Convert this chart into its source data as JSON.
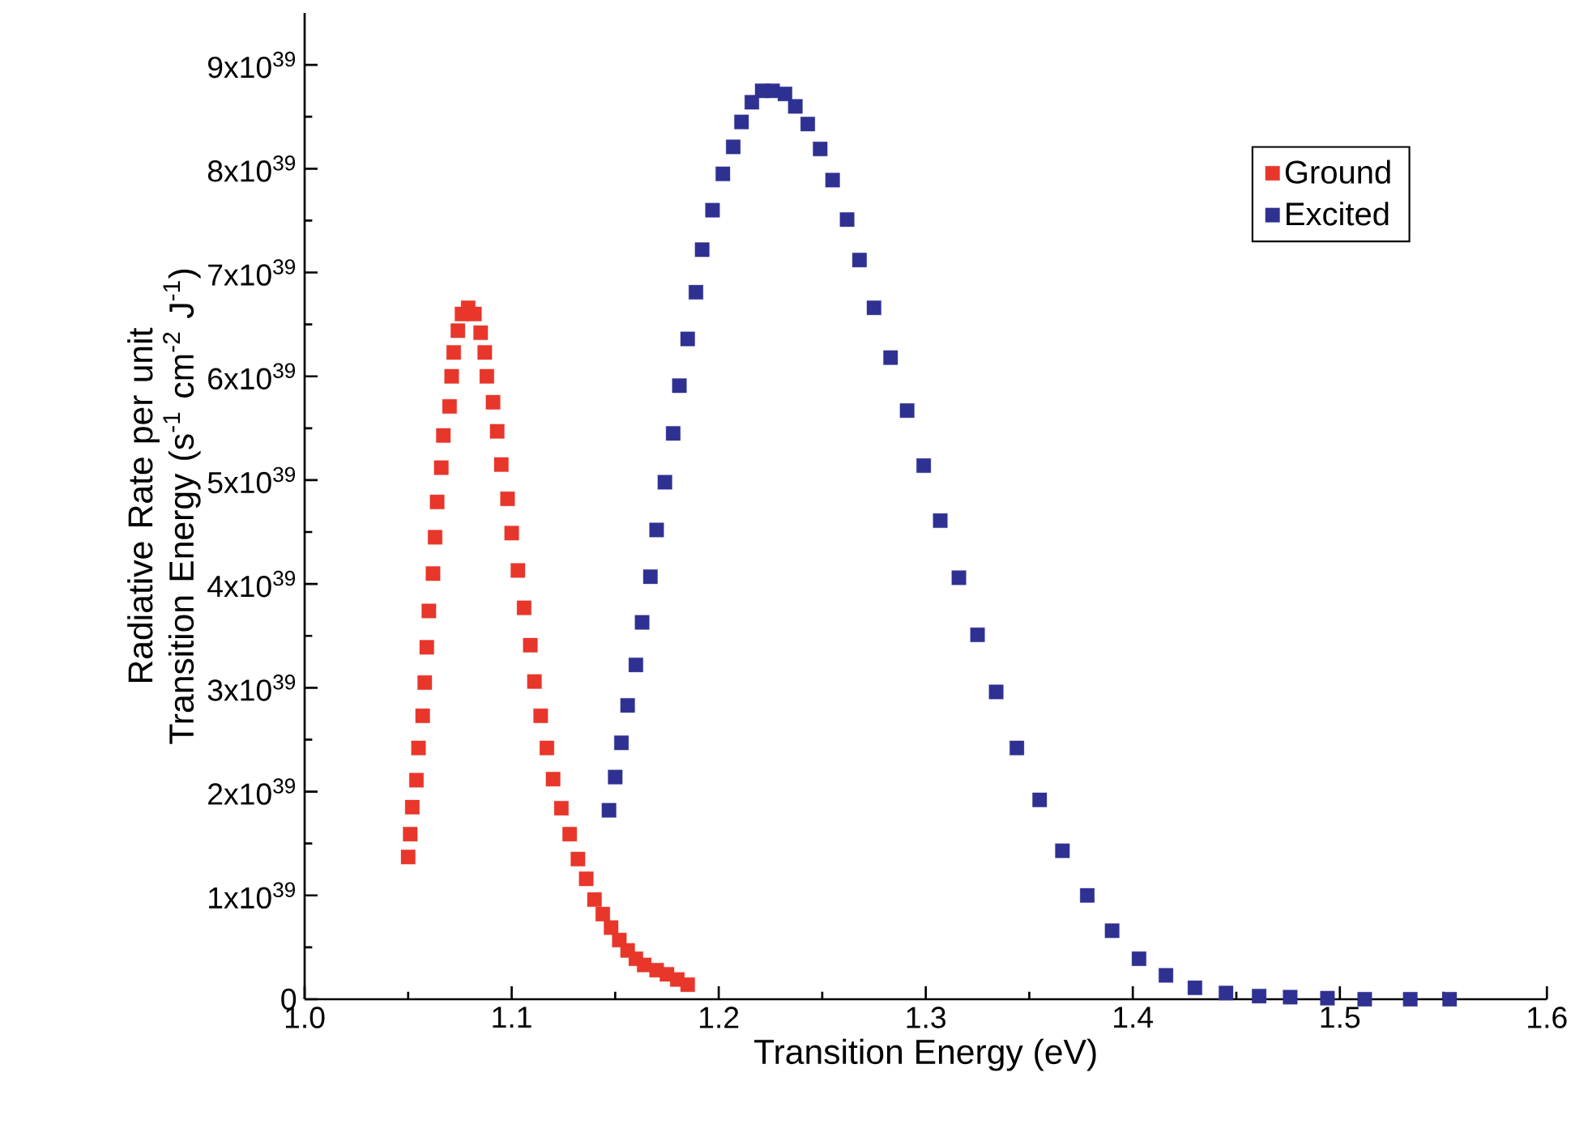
{
  "chart_data": {
    "type": "scatter",
    "xlabel": "Transition Energy (eV)",
    "ylabel": "Radiative Rate per unit Transition Energy (s$^{-1}$ cm$^{-2}$ J$^{-1}$)",
    "xlim": [
      1.0,
      1.6
    ],
    "xticks": [
      {
        "value": 1.0,
        "label": "1.0"
      },
      1.1,
      1.2,
      1.3,
      1.4,
      1.5,
      {
        "value": 1.6,
        "label": "1.6"
      }
    ],
    "ylim": [
      0,
      9.5e+39
    ],
    "yticks": [
      0,
      {
        "value": 1e+39,
        "label": "1x10$^{39}$"
      },
      {
        "value": 2e+39,
        "label": "2x10$^{39}$"
      },
      {
        "value": 3e+39,
        "label": "3x10$^{39}$"
      },
      {
        "value": 4e+39,
        "label": "4x10$^{39}$"
      },
      {
        "value": 5e+39,
        "label": "5x10$^{39}$"
      },
      {
        "value": 6e+39,
        "label": "6x10$^{39}$"
      },
      {
        "value": 7e+39,
        "label": "7x10$^{39}$"
      },
      {
        "value": 8e+39,
        "label": "8x10$^{39}$"
      },
      {
        "value": 9e+39,
        "label": "9x10$^{39}$"
      }
    ],
    "legend": "top right",
    "marker": "square",
    "grid": false,
    "series": [
      {
        "name": "Ground",
        "color": "#e8362a",
        "x": [
          1.05,
          1.051,
          1.052,
          1.054,
          1.055,
          1.057,
          1.058,
          1.059,
          1.06,
          1.062,
          1.063,
          1.064,
          1.066,
          1.067,
          1.07,
          1.071,
          1.072,
          1.074,
          1.076,
          1.079,
          1.082,
          1.085,
          1.087,
          1.088,
          1.091,
          1.093,
          1.095,
          1.098,
          1.1,
          1.103,
          1.106,
          1.109,
          1.111,
          1.114,
          1.117,
          1.12,
          1.124,
          1.128,
          1.132,
          1.136,
          1.14,
          1.144,
          1.148,
          1.152,
          1.156,
          1.16,
          1.164,
          1.17,
          1.175,
          1.18,
          1.185
        ],
        "values": [
          1.37e+39,
          1.59e+39,
          1.85e+39,
          2.11e+39,
          2.42e+39,
          2.73e+39,
          3.05e+39,
          3.39e+39,
          3.74e+39,
          4.1e+39,
          4.45e+39,
          4.79e+39,
          5.12e+39,
          5.43e+39,
          5.71e+39,
          6e+39,
          6.23e+39,
          6.44e+39,
          6.6e+39,
          6.66e+39,
          6.6e+39,
          6.42e+39,
          6.23e+39,
          6e+39,
          5.75e+39,
          5.47e+39,
          5.15e+39,
          4.82e+39,
          4.49e+39,
          4.13e+39,
          3.77e+39,
          3.41e+39,
          3.06e+39,
          2.73e+39,
          2.42e+39,
          2.12e+39,
          1.84e+39,
          1.59e+39,
          1.35e+39,
          1.16e+39,
          9.6e+38,
          8.2e+38,
          6.9e+38,
          5.7e+38,
          4.7e+38,
          3.9e+38,
          3.3e+38,
          2.8e+38,
          2.4e+38,
          1.9e+38,
          1.4e+38
        ]
      },
      {
        "name": "Excited",
        "color": "#2e3192",
        "x": [
          1.147,
          1.15,
          1.153,
          1.156,
          1.16,
          1.163,
          1.167,
          1.17,
          1.174,
          1.178,
          1.181,
          1.185,
          1.189,
          1.192,
          1.197,
          1.202,
          1.207,
          1.211,
          1.216,
          1.221,
          1.226,
          1.232,
          1.237,
          1.243,
          1.249,
          1.255,
          1.262,
          1.268,
          1.275,
          1.283,
          1.291,
          1.299,
          1.307,
          1.316,
          1.325,
          1.334,
          1.344,
          1.355,
          1.366,
          1.378,
          1.39,
          1.403,
          1.416,
          1.43,
          1.445,
          1.461,
          1.476,
          1.494,
          1.512,
          1.534,
          1.553
        ],
        "values": [
          1.82e+39,
          2.14e+39,
          2.47e+39,
          2.83e+39,
          3.22e+39,
          3.63e+39,
          4.07e+39,
          4.52e+39,
          4.98e+39,
          5.45e+39,
          5.91e+39,
          6.36e+39,
          6.81e+39,
          7.22e+39,
          7.6e+39,
          7.95e+39,
          8.21e+39,
          8.45e+39,
          8.64e+39,
          8.75e+39,
          8.75e+39,
          8.72e+39,
          8.6e+39,
          8.43e+39,
          8.19e+39,
          7.89e+39,
          7.51e+39,
          7.12e+39,
          6.66e+39,
          6.18e+39,
          5.67e+39,
          5.14e+39,
          4.61e+39,
          4.06e+39,
          3.51e+39,
          2.96e+39,
          2.42e+39,
          1.92e+39,
          1.43e+39,
          1e+39,
          6.6e+38,
          3.9e+38,
          2.3e+38,
          1.1e+38,
          6e+37,
          3e+37,
          2e+37,
          1e+37,
          0,
          0,
          0
        ]
      }
    ]
  }
}
